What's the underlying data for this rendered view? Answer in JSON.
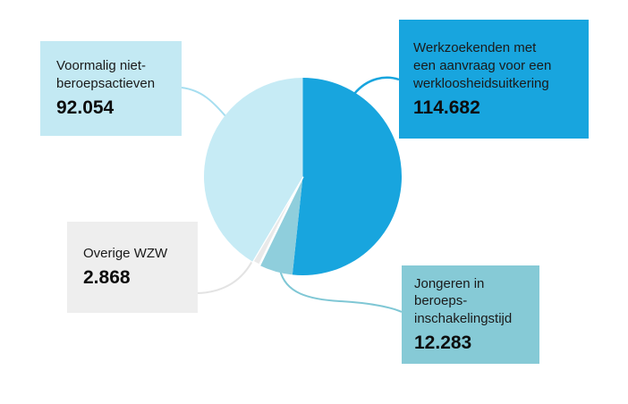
{
  "page": {
    "background": "#FFFFFF"
  },
  "chart_data": {
    "type": "pie",
    "title": "",
    "direction": "clockwise",
    "start_angle_deg": 0,
    "total": 221887,
    "slices": [
      {
        "id": "werkzoekenden",
        "label": "Werkzoekenden met een aanvraag voor een werkloosheidsuitkering",
        "value": 114682,
        "display_value": "114.682",
        "pct": 51.7,
        "color": "#18A5DE"
      },
      {
        "id": "jongeren",
        "label": "Jongeren in beroeps-inschakelingstijd",
        "value": 12283,
        "display_value": "12.283",
        "pct": 5.5,
        "color": "#8FCEDC"
      },
      {
        "id": "overige",
        "label": "Overige WZW",
        "value": 2868,
        "display_value": "2.868",
        "pct": 1.3,
        "color": "#E9E9E9",
        "stroke": "#FFFFFF"
      },
      {
        "id": "voormalig",
        "label": "Voormalig niet-beroepsactieven",
        "value": 92054,
        "display_value": "92.054",
        "pct": 41.5,
        "color": "#C6EBF5"
      }
    ]
  },
  "callouts": [
    {
      "id": "voormalig",
      "label": "Voormalig niet-\nberoepsactieven",
      "value": "92.054",
      "bg": "#C3E9F3"
    },
    {
      "id": "werkzoekenden",
      "label": "Werkzoekenden met\neen aanvraag voor een\nwerkloosheidsuitkering",
      "value": "114.682",
      "bg": "#18A5DE"
    },
    {
      "id": "overige",
      "label": "Overige WZW",
      "value": "2.868",
      "bg": "#EEEEEE"
    },
    {
      "id": "jongeren",
      "label": "Jongeren in\nberoeps-\ninschakelingstijd",
      "value": "12.283",
      "bg": "#86CAD6"
    }
  ],
  "connectors": [
    {
      "id": "voormalig",
      "color": "#A6DEF0"
    },
    {
      "id": "werkzoekenden",
      "color": "#18A5DE"
    },
    {
      "id": "overige",
      "color": "#E3E3E3"
    },
    {
      "id": "jongeren",
      "color": "#7FC7D5"
    }
  ]
}
